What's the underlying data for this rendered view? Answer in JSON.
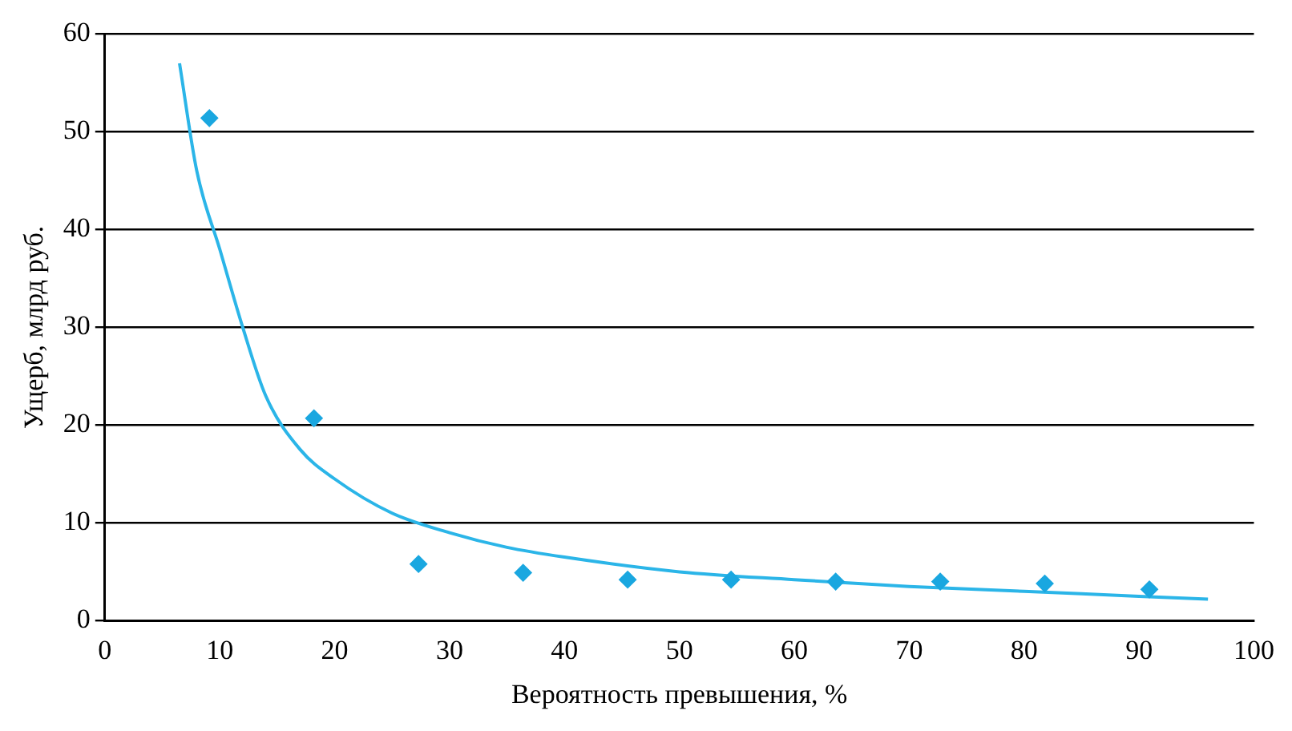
{
  "chart_data": {
    "type": "scatter",
    "xlabel": "Вероятность превышения, %",
    "ylabel": "Ущерб, млрд руб.",
    "xlim": [
      0,
      100
    ],
    "xticks": [
      0,
      10,
      20,
      30,
      40,
      50,
      60,
      70,
      80,
      90,
      100
    ],
    "ylim": [
      0,
      60
    ],
    "yticks": [
      0,
      10,
      20,
      30,
      40,
      50,
      60
    ],
    "grid": "y",
    "legend": false,
    "series": [
      {
        "type": "scatter",
        "marker": "diamond",
        "color": "#1aa7e0",
        "x": [
          9.1,
          18.2,
          27.3,
          36.4,
          45.5,
          54.5,
          63.6,
          72.7,
          81.8,
          90.9
        ],
        "values": [
          51.4,
          20.7,
          5.8,
          4.9,
          4.2,
          4.2,
          4.0,
          4.0,
          3.8,
          3.2
        ]
      },
      {
        "type": "line",
        "color": "#2bb5e8",
        "x": [
          6.5,
          8,
          10,
          12,
          14,
          17,
          20,
          25,
          30,
          35,
          40,
          50,
          60,
          70,
          80,
          90,
          96
        ],
        "values": [
          57,
          46,
          38,
          30,
          23,
          17.5,
          14.5,
          11,
          9,
          7.5,
          6.5,
          5,
          4.2,
          3.5,
          3,
          2.5,
          2.2
        ]
      }
    ]
  }
}
